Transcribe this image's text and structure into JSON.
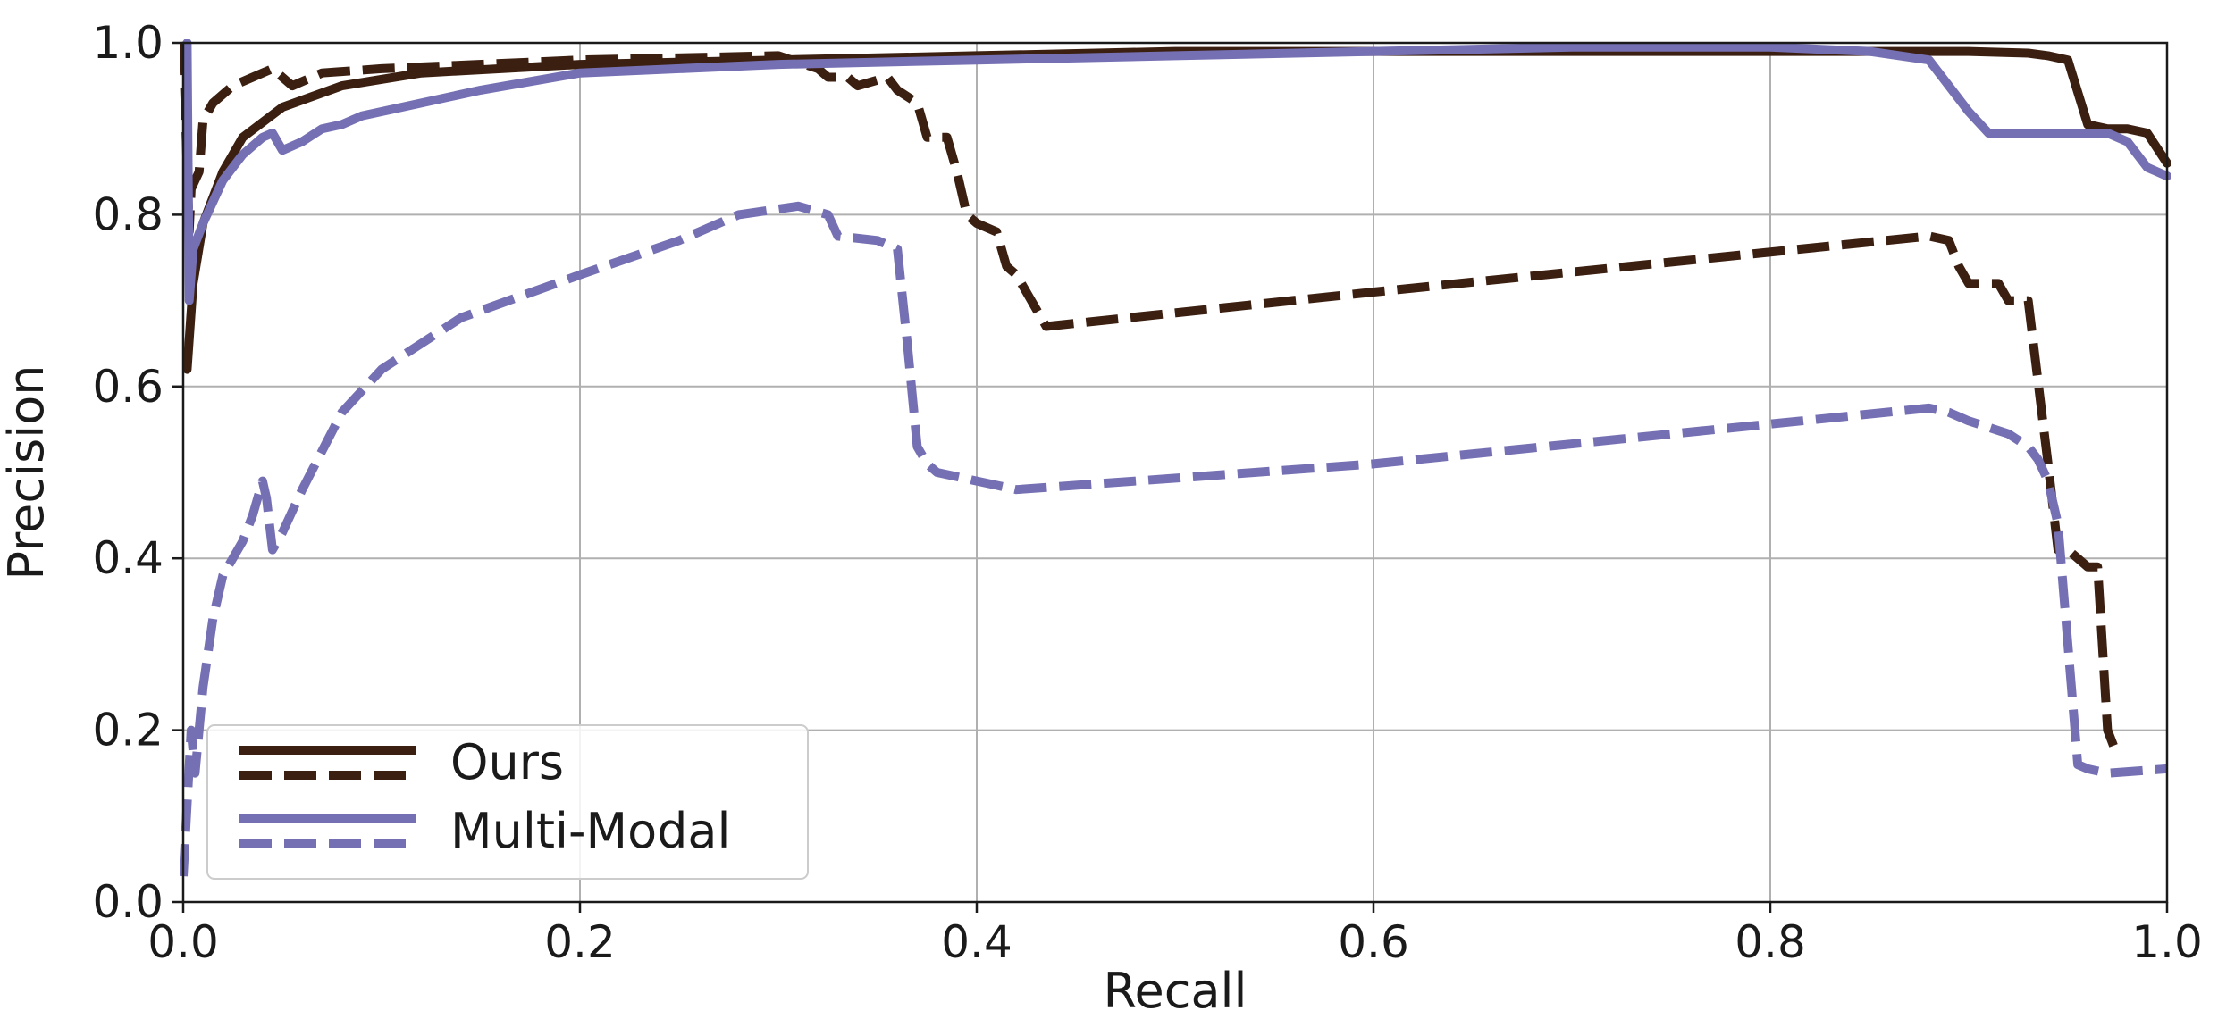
{
  "chart_data": {
    "type": "line",
    "title": "",
    "xlabel": "Recall",
    "ylabel": "Precision",
    "xlim": [
      0.0,
      1.0
    ],
    "ylim": [
      0.0,
      1.0
    ],
    "xticks": [
      "0.0",
      "0.2",
      "0.4",
      "0.6",
      "0.8",
      "1.0"
    ],
    "yticks": [
      "0.0",
      "0.2",
      "0.4",
      "0.6",
      "0.8",
      "1.0"
    ],
    "grid": true,
    "legend": {
      "placement": "lower-left",
      "entries": [
        {
          "label": "Ours",
          "color": "#3b1f10",
          "styles": [
            "solid",
            "dashed"
          ]
        },
        {
          "label": "Multi-Modal",
          "color": "#7570b3",
          "styles": [
            "solid",
            "dashed"
          ]
        }
      ]
    },
    "series": [
      {
        "group": "Ours",
        "style": "solid",
        "color": "#3b1f10",
        "x": [
          0.002,
          0.005,
          0.01,
          0.02,
          0.03,
          0.05,
          0.08,
          0.12,
          0.2,
          0.3,
          0.4,
          0.5,
          0.6,
          0.7,
          0.8,
          0.9,
          0.93,
          0.94,
          0.95,
          0.96,
          0.97,
          0.98,
          0.99,
          1.0
        ],
        "y": [
          0.62,
          0.72,
          0.79,
          0.85,
          0.89,
          0.925,
          0.95,
          0.965,
          0.975,
          0.98,
          0.985,
          0.99,
          0.99,
          0.99,
          0.99,
          0.99,
          0.988,
          0.985,
          0.98,
          0.905,
          0.9,
          0.9,
          0.895,
          0.86
        ]
      },
      {
        "group": "Ours",
        "style": "dashed",
        "color": "#3b1f10",
        "x": [
          0.0,
          0.003,
          0.004,
          0.008,
          0.01,
          0.015,
          0.02,
          0.025,
          0.035,
          0.045,
          0.05,
          0.055,
          0.06,
          0.07,
          0.1,
          0.2,
          0.3,
          0.32,
          0.325,
          0.335,
          0.34,
          0.355,
          0.36,
          0.37,
          0.375,
          0.385,
          0.39,
          0.395,
          0.4,
          0.41,
          0.415,
          0.42,
          0.43,
          0.435,
          0.6,
          0.88,
          0.89,
          0.895,
          0.9,
          0.915,
          0.92,
          0.93,
          0.94,
          0.945,
          0.95,
          0.955,
          0.96,
          0.965,
          0.97,
          0.975
        ],
        "y": [
          1.0,
          0.78,
          0.83,
          0.85,
          0.91,
          0.93,
          0.94,
          0.95,
          0.96,
          0.97,
          0.96,
          0.95,
          0.955,
          0.965,
          0.97,
          0.98,
          0.985,
          0.97,
          0.96,
          0.96,
          0.95,
          0.96,
          0.945,
          0.93,
          0.89,
          0.89,
          0.85,
          0.8,
          0.79,
          0.78,
          0.74,
          0.73,
          0.69,
          0.67,
          0.71,
          0.775,
          0.77,
          0.74,
          0.72,
          0.72,
          0.7,
          0.7,
          0.51,
          0.41,
          0.41,
          0.4,
          0.39,
          0.39,
          0.2,
          0.17
        ]
      },
      {
        "group": "Multi-Modal",
        "style": "solid",
        "color": "#7570b3",
        "x": [
          0.002,
          0.003,
          0.005,
          0.01,
          0.02,
          0.03,
          0.04,
          0.045,
          0.05,
          0.06,
          0.07,
          0.08,
          0.09,
          0.15,
          0.2,
          0.3,
          0.4,
          0.5,
          0.6,
          0.7,
          0.8,
          0.85,
          0.88,
          0.9,
          0.91,
          0.92,
          0.95,
          0.97,
          0.98,
          0.99,
          1.0
        ],
        "y": [
          1.0,
          0.7,
          0.76,
          0.79,
          0.84,
          0.87,
          0.89,
          0.895,
          0.875,
          0.885,
          0.9,
          0.905,
          0.915,
          0.945,
          0.965,
          0.975,
          0.98,
          0.985,
          0.99,
          0.995,
          0.995,
          0.99,
          0.98,
          0.92,
          0.895,
          0.895,
          0.895,
          0.895,
          0.885,
          0.855,
          0.845
        ]
      },
      {
        "group": "Multi-Modal",
        "style": "dashed",
        "color": "#7570b3",
        "x": [
          0.0,
          0.004,
          0.006,
          0.01,
          0.015,
          0.02,
          0.025,
          0.03,
          0.035,
          0.04,
          0.042,
          0.045,
          0.05,
          0.06,
          0.08,
          0.1,
          0.14,
          0.2,
          0.25,
          0.28,
          0.31,
          0.325,
          0.33,
          0.35,
          0.36,
          0.365,
          0.37,
          0.375,
          0.38,
          0.39,
          0.4,
          0.41,
          0.42,
          0.6,
          0.88,
          0.89,
          0.9,
          0.92,
          0.93,
          0.935,
          0.94,
          0.945,
          0.95,
          0.955,
          0.96,
          0.97,
          1.0
        ],
        "y": [
          0.03,
          0.2,
          0.15,
          0.25,
          0.33,
          0.38,
          0.4,
          0.42,
          0.45,
          0.49,
          0.47,
          0.41,
          0.43,
          0.48,
          0.57,
          0.62,
          0.68,
          0.73,
          0.77,
          0.8,
          0.81,
          0.8,
          0.775,
          0.77,
          0.76,
          0.65,
          0.53,
          0.51,
          0.5,
          0.495,
          0.49,
          0.485,
          0.48,
          0.51,
          0.575,
          0.57,
          0.56,
          0.545,
          0.53,
          0.515,
          0.49,
          0.44,
          0.3,
          0.16,
          0.155,
          0.15,
          0.155
        ]
      }
    ]
  }
}
